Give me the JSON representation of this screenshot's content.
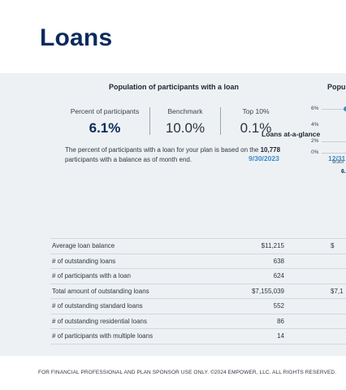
{
  "page": {
    "title": "Loans"
  },
  "population_card": {
    "title": "Population of participants with a loan",
    "stats": [
      {
        "label": "Percent of participants",
        "value": "6.1%"
      },
      {
        "label": "Benchmark",
        "value": "10.0%"
      },
      {
        "label": "Top 10%",
        "value": "0.1%"
      }
    ],
    "note_prefix": "The percent of participants with a loan for your plan is based on the",
    "note_count": "10,778",
    "note_suffix": "participants with a balance as of month end."
  },
  "population_trend_card": {
    "title": "Popu",
    "y_ticks": [
      "6%",
      "4%",
      "2%",
      "0%"
    ],
    "x_label": "9/30/",
    "point_value": "6."
  },
  "loans_table": {
    "title": "Loans at-a-glance",
    "columns": [
      "9/30/2023",
      "12/31"
    ],
    "rows": [
      {
        "label": "Average loan balance",
        "v1": "$11,215",
        "v2": "$"
      },
      {
        "label": "# of outstanding loans",
        "v1": "638",
        "v2": ""
      },
      {
        "label": "# of participants with a loan",
        "v1": "624",
        "v2": ""
      },
      {
        "label": "Total amount of outstanding loans",
        "v1": "$7,155,039",
        "v2": "$7,1"
      },
      {
        "label": "# of outstanding standard loans",
        "v1": "552",
        "v2": ""
      },
      {
        "label": "# of outstanding residential loans",
        "v1": "86",
        "v2": ""
      },
      {
        "label": "# of participants with multiple loans",
        "v1": "14",
        "v2": ""
      }
    ]
  },
  "footer": {
    "text": "FOR FINANCIAL PROFESSIONAL AND PLAN SPONSOR USE ONLY. ©2024 EMPOWER, LLC. ALL RIGHTS RESERVED."
  },
  "colors": {
    "title": "#0c2a5c",
    "accent": "#3a8dc8",
    "panel_bg": "#eef1f4"
  }
}
